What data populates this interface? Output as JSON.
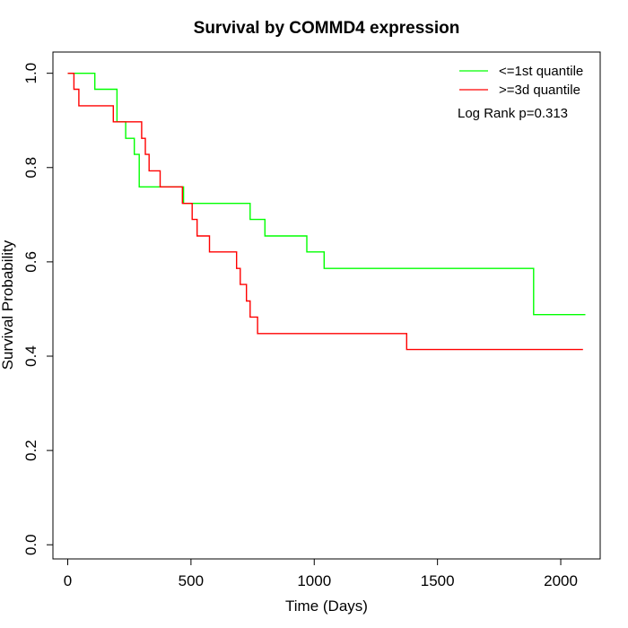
{
  "chart_data": {
    "type": "line",
    "title": "Survival by COMMD4 expression",
    "xlabel": "Time (Days)",
    "ylabel": "Survival Probability",
    "xlim": [
      -60,
      2160
    ],
    "ylim": [
      -0.03,
      1.045
    ],
    "xticks": [
      0,
      500,
      1000,
      1500,
      2000
    ],
    "yticks": [
      0.0,
      0.2,
      0.4,
      0.6,
      0.8,
      1.0
    ],
    "xtick_labels": [
      "0",
      "500",
      "1000",
      "1500",
      "2000"
    ],
    "ytick_labels": [
      "0.0",
      "0.2",
      "0.4",
      "0.6",
      "0.8",
      "1.0"
    ],
    "grid": false,
    "legend_position": "top-right",
    "annotation": "Log Rank p=0.313",
    "series": [
      {
        "name": "<=1st quantile",
        "color": "#00ff00",
        "step": true,
        "x": [
          0,
          110,
          200,
          235,
          270,
          290,
          470,
          740,
          800,
          970,
          1040,
          1890,
          2100
        ],
        "y": [
          1.0,
          0.966,
          0.897,
          0.862,
          0.828,
          0.759,
          0.724,
          0.69,
          0.655,
          0.621,
          0.586,
          0.488,
          0.488
        ]
      },
      {
        "name": ">=3d quantile",
        "color": "#ff0000",
        "step": true,
        "x": [
          0,
          25,
          45,
          185,
          300,
          315,
          330,
          375,
          465,
          505,
          525,
          575,
          685,
          700,
          725,
          740,
          770,
          1375,
          2090
        ],
        "y": [
          1.0,
          0.966,
          0.931,
          0.897,
          0.862,
          0.828,
          0.793,
          0.759,
          0.724,
          0.69,
          0.655,
          0.621,
          0.586,
          0.552,
          0.517,
          0.483,
          0.448,
          0.414,
          0.414
        ]
      }
    ]
  }
}
